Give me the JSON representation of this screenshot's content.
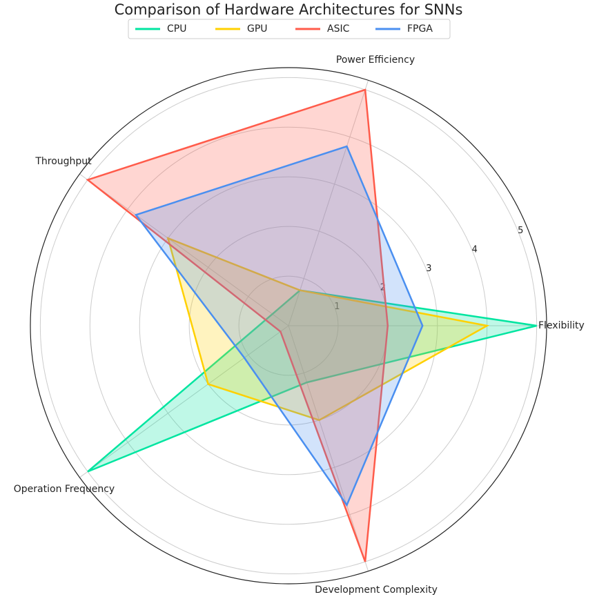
{
  "chart_data": {
    "type": "radar",
    "title": "Comparison of Hardware Architectures for SNNs",
    "categories": [
      "Flexibility",
      "Power Efficiency",
      "Throughput",
      "Operation Frequency",
      "Development Complexity"
    ],
    "ylim": [
      0,
      5.2
    ],
    "yticks": [
      1,
      2,
      3,
      4,
      5
    ],
    "grid": true,
    "series": [
      {
        "name": "CPU",
        "color": "#00e5a0",
        "values": [
          5,
          0.75,
          0.4,
          5,
          1.2
        ]
      },
      {
        "name": "GPU",
        "color": "#ffd000",
        "values": [
          4,
          0.75,
          3,
          2,
          2
        ]
      },
      {
        "name": "ASIC",
        "color": "#ff5b4a",
        "values": [
          2,
          5,
          5,
          0.2,
          5
        ]
      },
      {
        "name": "FPGA",
        "color": "#4a8ff0",
        "values": [
          2.7,
          3.8,
          3.8,
          1.1,
          3.8
        ]
      }
    ]
  }
}
